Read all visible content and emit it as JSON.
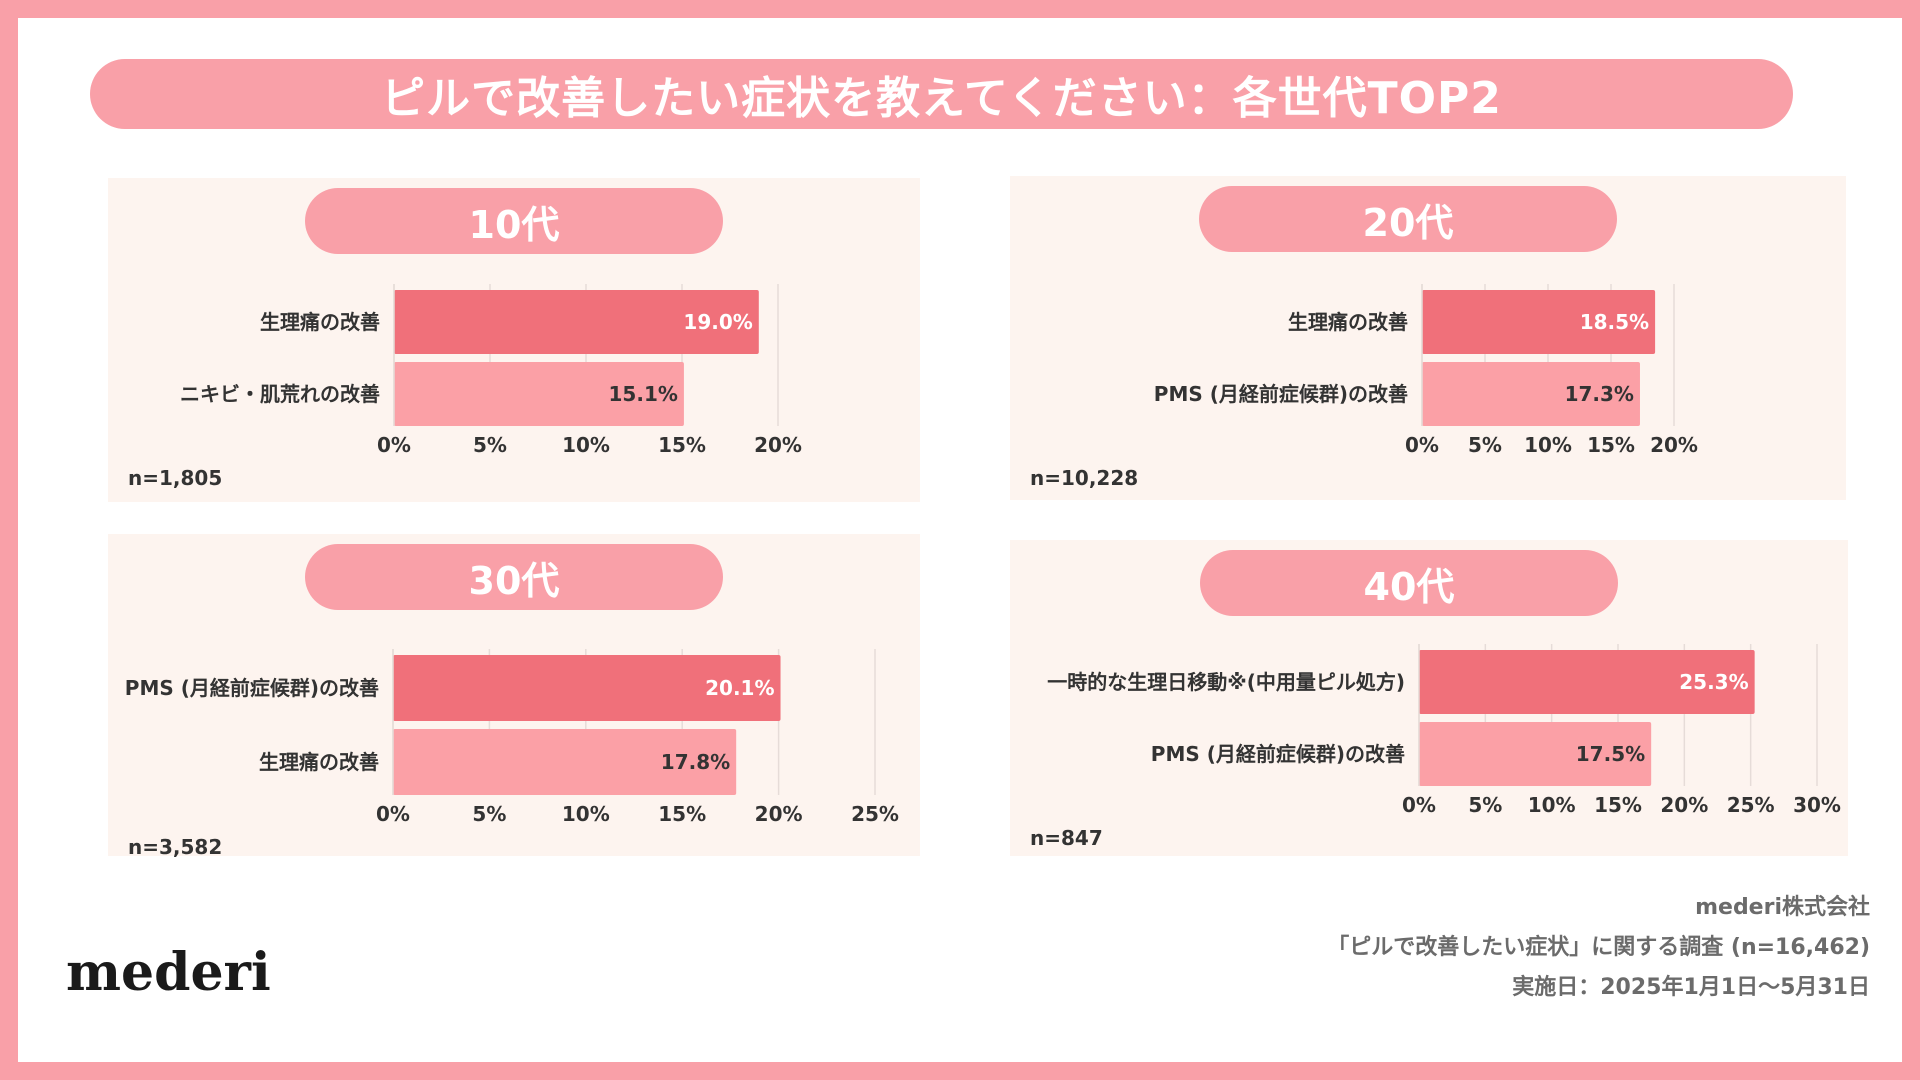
{
  "title": "ピルで改善したい症状を教えてください：各世代TOP2",
  "colors": {
    "frame": "#f9a0a8",
    "bar_primary": "#f0707a",
    "bar_secondary": "#fba0a6",
    "panel_bg": "#fdf4ef"
  },
  "chart_data": [
    {
      "type": "bar",
      "orientation": "horizontal",
      "title": "10代",
      "categories": [
        "生理痛の改善",
        "ニキビ・肌荒れの改善"
      ],
      "values": [
        19.0,
        15.1
      ],
      "value_labels": [
        "19.0%",
        "15.1%"
      ],
      "xlim": [
        0,
        20
      ],
      "x_ticks": [
        "0%",
        "5%",
        "10%",
        "15%",
        "20%"
      ],
      "n": "n=1,805"
    },
    {
      "type": "bar",
      "orientation": "horizontal",
      "title": "20代",
      "categories": [
        "生理痛の改善",
        "PMS (月経前症候群)の改善"
      ],
      "values": [
        18.5,
        17.3
      ],
      "value_labels": [
        "18.5%",
        "17.3%"
      ],
      "xlim": [
        0,
        20
      ],
      "x_ticks": [
        "0%",
        "5%",
        "10%",
        "15%",
        "20%"
      ],
      "n": "n=10,228"
    },
    {
      "type": "bar",
      "orientation": "horizontal",
      "title": "30代",
      "categories": [
        "PMS (月経前症候群)の改善",
        "生理痛の改善"
      ],
      "values": [
        20.1,
        17.8
      ],
      "value_labels": [
        "20.1%",
        "17.8%"
      ],
      "xlim": [
        0,
        25
      ],
      "x_ticks": [
        "0%",
        "5%",
        "10%",
        "15%",
        "20%",
        "25%"
      ],
      "n": "n=3,582"
    },
    {
      "type": "bar",
      "orientation": "horizontal",
      "title": "40代",
      "categories": [
        "一時的な生理日移動※(中用量ピル処方)",
        "PMS (月経前症候群)の改善"
      ],
      "values": [
        25.3,
        17.5
      ],
      "value_labels": [
        "25.3%",
        "17.5%"
      ],
      "xlim": [
        0,
        30
      ],
      "x_ticks": [
        "0%",
        "5%",
        "10%",
        "15%",
        "20%",
        "25%",
        "30%"
      ],
      "n": "n=847"
    }
  ],
  "footer": {
    "company": "mederi株式会社",
    "survey": "「ピルで改善したい症状」に関する調査 (n=16,462)",
    "date": "実施日：2025年1月1日〜5月31日"
  },
  "logo": "mederi"
}
